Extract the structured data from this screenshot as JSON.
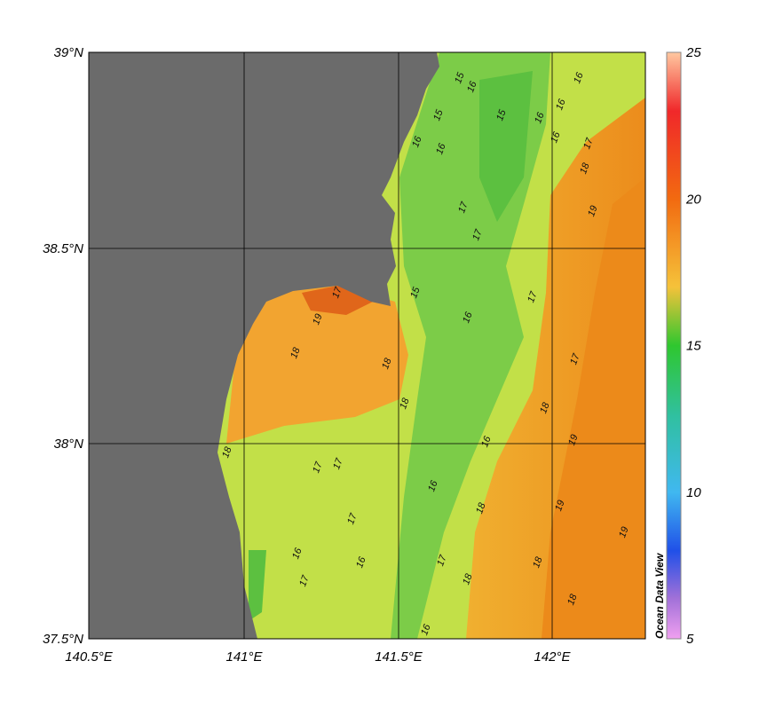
{
  "map": {
    "lat_labels": [
      "39°N",
      "38.5°N",
      "38°N",
      "37.5°N"
    ],
    "lon_labels": [
      "140.5°E",
      "141°E",
      "141.5°E",
      "142°E"
    ],
    "colorbar_labels": [
      "25",
      "20",
      "15",
      "10",
      "5"
    ],
    "brand": "Ocean Data View",
    "contour_labels": [
      "15",
      "16",
      "16",
      "16",
      "15",
      "16",
      "16",
      "15",
      "16",
      "16",
      "17",
      "18",
      "19",
      "17",
      "17",
      "15",
      "16",
      "17",
      "19",
      "18",
      "18",
      "17",
      "17",
      "18",
      "18",
      "19",
      "18",
      "17",
      "17",
      "17",
      "16",
      "16",
      "18",
      "19",
      "19",
      "16",
      "17",
      "16",
      "17",
      "18",
      "18",
      "18",
      "16"
    ]
  }
}
